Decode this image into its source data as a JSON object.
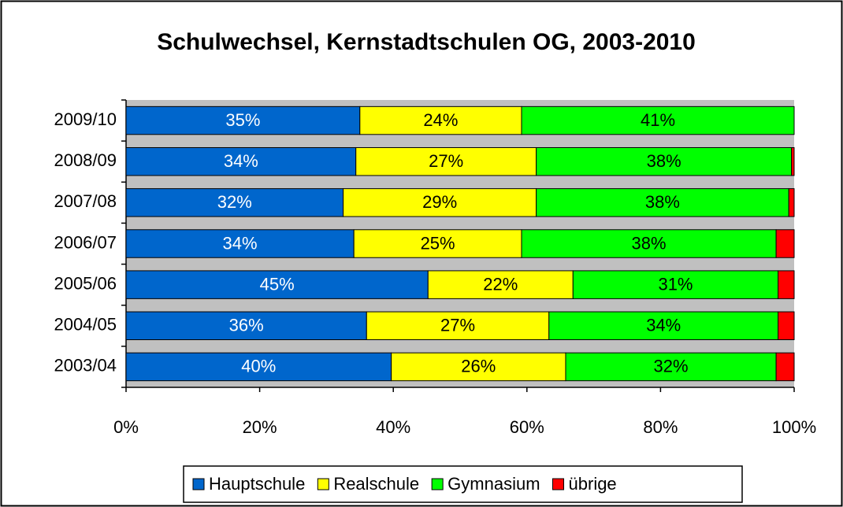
{
  "chart_data": {
    "type": "stacked_barh",
    "title": "Schulwechsel, Kernstadtschulen OG, 2003-2010",
    "categories": [
      "2009/10",
      "2008/09",
      "2007/08",
      "2006/07",
      "2005/06",
      "2004/05",
      "2003/04"
    ],
    "series": [
      {
        "name": "Hauptschule",
        "color": "#0066cc",
        "label_color": "#ffffff",
        "values": [
          35,
          34.4,
          32.5,
          34.1,
          45.2,
          36,
          39.7
        ],
        "value_labels": [
          "35%",
          "34%",
          "32%",
          "34%",
          "45%",
          "36%",
          "40%"
        ]
      },
      {
        "name": "Realschule",
        "color": "#ffff00",
        "label_color": "#000000",
        "values": [
          24.2,
          27,
          28.9,
          25.1,
          21.7,
          27.3,
          26.1
        ],
        "value_labels": [
          "24%",
          "27%",
          "29%",
          "25%",
          "22%",
          "27%",
          "26%"
        ]
      },
      {
        "name": "Gymnasium",
        "color": "#00ff00",
        "label_color": "#000000",
        "values": [
          40.8,
          38.2,
          37.8,
          38.1,
          30.7,
          34.3,
          31.5
        ],
        "value_labels": [
          "41%",
          "38%",
          "38%",
          "38%",
          "31%",
          "34%",
          "32%"
        ]
      },
      {
        "name": "übrige",
        "color": "#ff0000",
        "values": [
          0,
          0.4,
          0.8,
          2.7,
          2.4,
          2.4,
          2.7
        ]
      }
    ],
    "xlim": [
      0,
      100
    ],
    "xticks": [
      {
        "value": 0,
        "label": "0%"
      },
      {
        "value": 20,
        "label": "20%"
      },
      {
        "value": 40,
        "label": "40%"
      },
      {
        "value": 60,
        "label": "60%"
      },
      {
        "value": 80,
        "label": "80%"
      },
      {
        "value": 100,
        "label": "100%"
      }
    ],
    "legend": "bottom"
  }
}
